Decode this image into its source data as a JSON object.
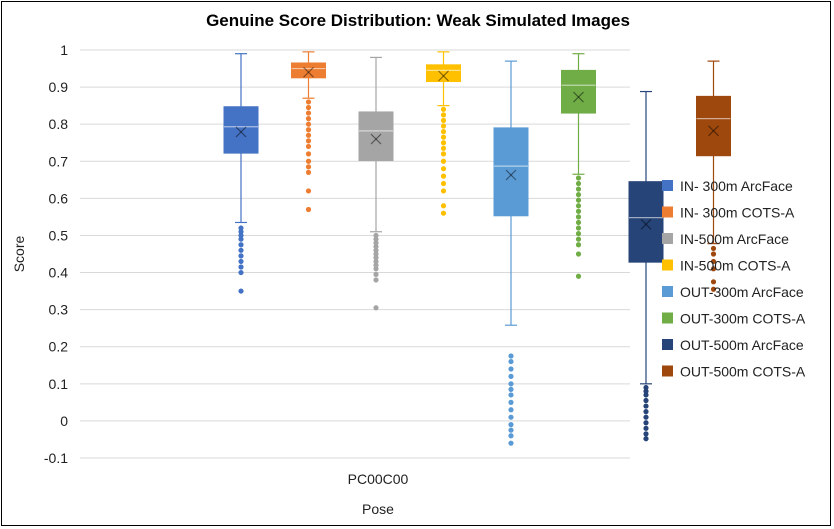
{
  "chart_data": {
    "type": "box",
    "title": "Genuine Score Distribution: Weak Simulated Images",
    "xlabel": "Pose",
    "ylabel": "Score",
    "categories": [
      "PC00C00"
    ],
    "ylim": [
      -0.1,
      1
    ],
    "yticks": [
      "-0.1",
      "0",
      "0.1",
      "0.2",
      "0.3",
      "0.4",
      "0.5",
      "0.6",
      "0.7",
      "0.8",
      "0.9",
      "1"
    ],
    "grid": true,
    "legend_position": "right",
    "series": [
      {
        "name": "IN- 300m ArcFace",
        "color": "#4472c4",
        "whisker_low": 0.535,
        "q1": 0.722,
        "median": 0.793,
        "q3": 0.847,
        "whisker_high": 0.99,
        "mean": 0.779,
        "outliers": [
          0.52,
          0.51,
          0.5,
          0.49,
          0.475,
          0.46,
          0.445,
          0.43,
          0.415,
          0.4,
          0.35
        ]
      },
      {
        "name": "IN- 300m COTS-A",
        "color": "#ed7d31",
        "whisker_low": 0.87,
        "q1": 0.925,
        "median": 0.95,
        "q3": 0.965,
        "whisker_high": 0.995,
        "mean": 0.94,
        "outliers": [
          0.86,
          0.845,
          0.83,
          0.815,
          0.8,
          0.785,
          0.77,
          0.755,
          0.74,
          0.72,
          0.7,
          0.685,
          0.67,
          0.62,
          0.57
        ]
      },
      {
        "name": "IN-500m ArcFace",
        "color": "#a5a5a5",
        "whisker_low": 0.51,
        "q1": 0.702,
        "median": 0.782,
        "q3": 0.833,
        "whisker_high": 0.98,
        "mean": 0.76,
        "outliers": [
          0.5,
          0.49,
          0.48,
          0.47,
          0.46,
          0.45,
          0.44,
          0.43,
          0.42,
          0.41,
          0.395,
          0.38,
          0.305
        ]
      },
      {
        "name": "IN-500m COTS-A",
        "color": "#ffc000",
        "whisker_low": 0.85,
        "q1": 0.915,
        "median": 0.945,
        "q3": 0.96,
        "whisker_high": 0.995,
        "mean": 0.93,
        "outliers": [
          0.84,
          0.825,
          0.81,
          0.795,
          0.78,
          0.765,
          0.75,
          0.735,
          0.72,
          0.7,
          0.68,
          0.66,
          0.64,
          0.62,
          0.58,
          0.56
        ]
      },
      {
        "name": "OUT-300m ArcFace",
        "color": "#5b9bd5",
        "whisker_low": 0.258,
        "q1": 0.553,
        "median": 0.687,
        "q3": 0.79,
        "whisker_high": 0.97,
        "mean": 0.663,
        "outliers": [
          0.175,
          0.16,
          0.14,
          0.12,
          0.1,
          0.085,
          0.07,
          0.05,
          0.03,
          0.01,
          -0.01,
          -0.025,
          -0.04,
          -0.06
        ]
      },
      {
        "name": "OUT-300m COTS-A",
        "color": "#70ad47",
        "whisker_low": 0.665,
        "q1": 0.83,
        "median": 0.905,
        "q3": 0.945,
        "whisker_high": 0.99,
        "mean": 0.873,
        "outliers": [
          0.655,
          0.64,
          0.625,
          0.61,
          0.595,
          0.58,
          0.565,
          0.55,
          0.535,
          0.52,
          0.505,
          0.49,
          0.475,
          0.45,
          0.39
        ]
      },
      {
        "name": "OUT-500m ArcFace",
        "color": "#264478",
        "whisker_low": 0.1,
        "q1": 0.428,
        "median": 0.548,
        "q3": 0.645,
        "whisker_high": 0.888,
        "mean": 0.53,
        "outliers": [
          0.09,
          0.08,
          0.07,
          0.055,
          0.04,
          0.025,
          0.01,
          -0.005,
          -0.02,
          -0.035,
          -0.048
        ]
      },
      {
        "name": "OUT-500m COTS-A",
        "color": "#9e480e",
        "whisker_low": 0.478,
        "q1": 0.715,
        "median": 0.815,
        "q3": 0.875,
        "whisker_high": 0.97,
        "mean": 0.782,
        "outliers": [
          0.465,
          0.45,
          0.43,
          0.41,
          0.375,
          0.355
        ]
      }
    ]
  }
}
